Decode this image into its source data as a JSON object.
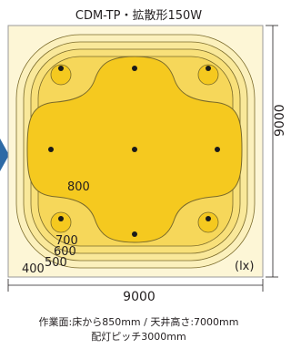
{
  "title": "CDM-TP・拡散形150W",
  "dimension_right": "9000",
  "dimension_bottom": "9000",
  "unit_label": "(lx)",
  "contour_labels": {
    "c400": "400",
    "c500": "500",
    "c600": "600",
    "c700": "700",
    "c800": "800"
  },
  "caption": {
    "line1": "作業面:床から850mm / 天井高さ:7000mm",
    "line2": "配灯ピッチ3000mm"
  },
  "colors": {
    "band_outer": "#fdf6d6",
    "band_2": "#fbeeae",
    "band_3": "#f9e58a",
    "band_4": "#f8dc60",
    "band_inner": "#f5ce2a",
    "arrow": "#2e6aa6"
  }
}
